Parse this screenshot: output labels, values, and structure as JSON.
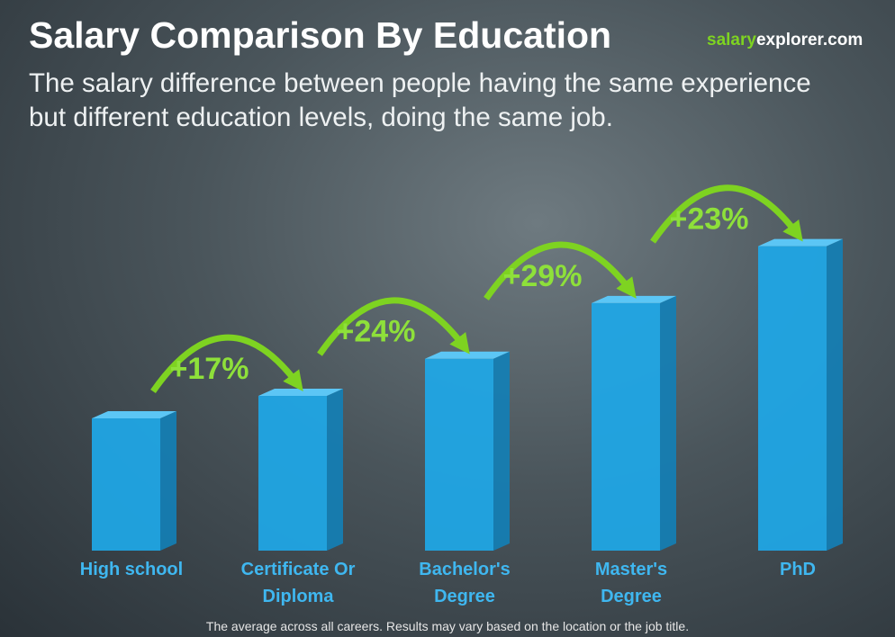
{
  "chart_data": {
    "type": "bar",
    "title": "Salary Comparison By Education",
    "brand": {
      "highlight": "salary",
      "rest": "explorer.com"
    },
    "subtitle": "The salary difference between people having the same experience but different education levels, doing the same job.",
    "categories": [
      "High school",
      "Certificate Or Diploma",
      "Bachelor's Degree",
      "Master's Degree",
      "PhD"
    ],
    "increases": {
      "values": [
        17,
        24,
        29,
        23
      ],
      "value_labels": [
        "+17%",
        "+24%",
        "+29%",
        "+23%"
      ]
    },
    "color": "#1ea8e8",
    "arrow_color": "#7ed321",
    "note": "The average across all careers. Results may vary based on the location or the job title."
  }
}
